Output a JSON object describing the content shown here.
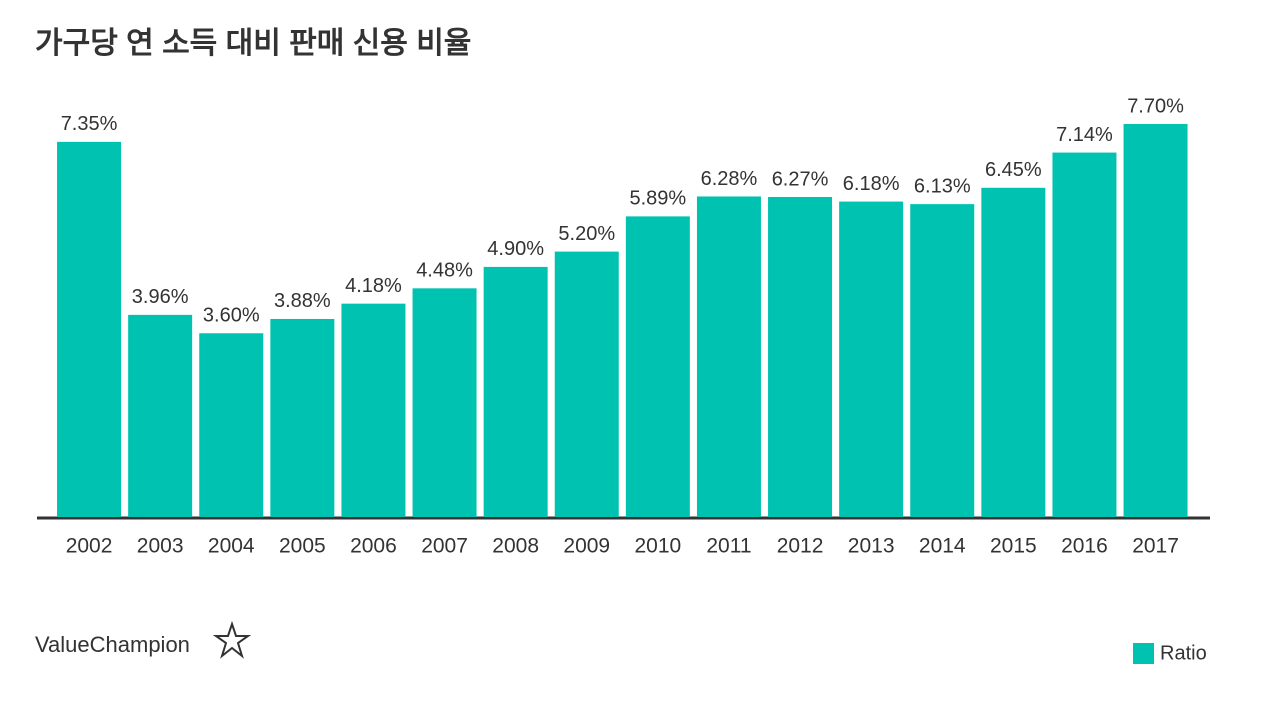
{
  "chart_data": {
    "type": "bar",
    "title": "가구당 연 소득 대비 판매 신용 비율",
    "categories": [
      "2002",
      "2003",
      "2004",
      "2005",
      "2006",
      "2007",
      "2008",
      "2009",
      "2010",
      "2011",
      "2012",
      "2013",
      "2014",
      "2015",
      "2016",
      "2017"
    ],
    "series": [
      {
        "name": "Ratio",
        "color": "#00c2b0",
        "values": [
          7.35,
          3.96,
          3.6,
          3.88,
          4.18,
          4.48,
          4.9,
          5.2,
          5.89,
          6.28,
          6.27,
          6.18,
          6.13,
          6.45,
          7.14,
          7.7
        ],
        "value_labels": [
          "7.35%",
          "3.96%",
          "3.60%",
          "3.88%",
          "4.18%",
          "4.48%",
          "4.90%",
          "5.20%",
          "5.89%",
          "6.28%",
          "6.27%",
          "6.18%",
          "6.13%",
          "6.45%",
          "7.14%",
          "7.70%"
        ]
      }
    ],
    "legend": "bottom-right"
  },
  "logo": "ValueChampion"
}
